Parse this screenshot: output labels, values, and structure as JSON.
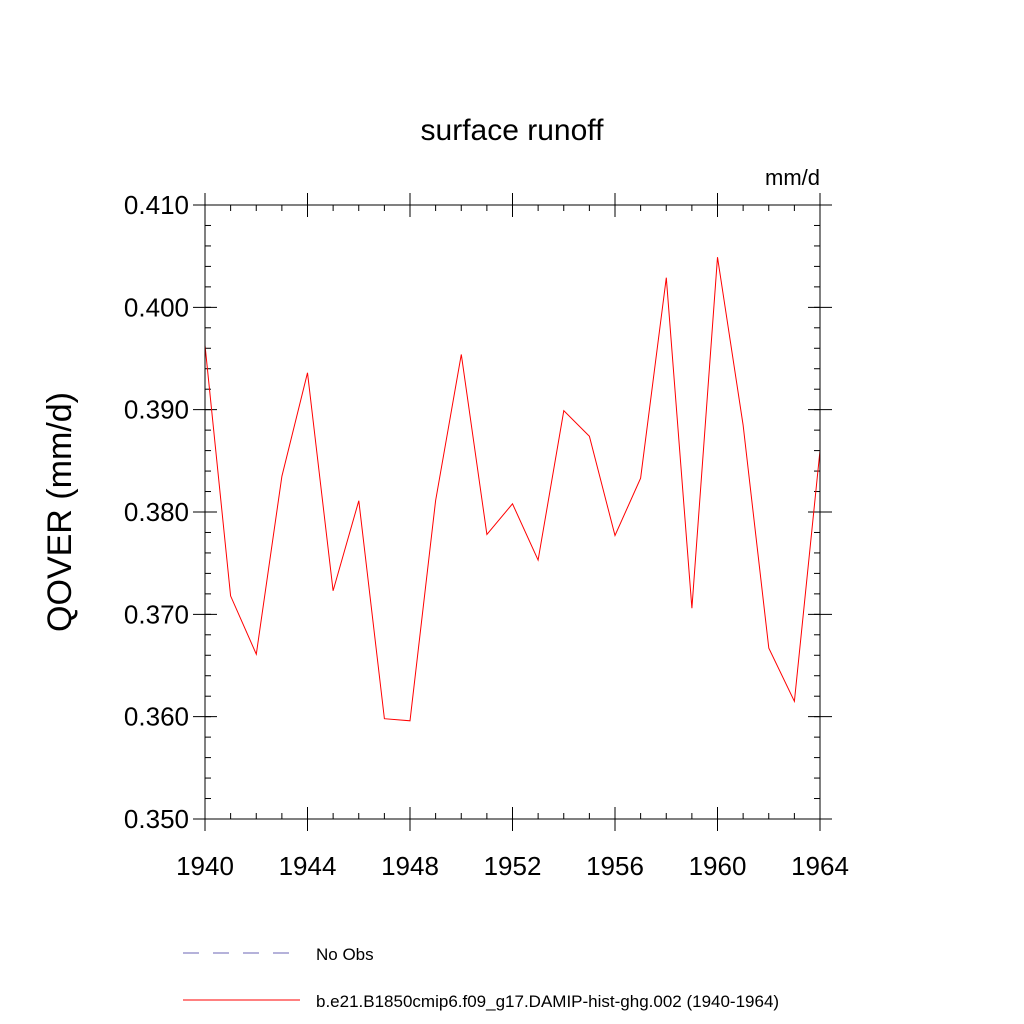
{
  "chart_data": {
    "type": "line",
    "title": "surface runoff",
    "units": "mm/d",
    "ylabel": "QOVER  (mm/d)",
    "xlabel": "",
    "xlim": [
      1940,
      1964
    ],
    "ylim": [
      0.35,
      0.41
    ],
    "x_ticks": [
      1940,
      1944,
      1948,
      1952,
      1956,
      1960,
      1964
    ],
    "y_ticks": [
      "0.350",
      "0.360",
      "0.370",
      "0.380",
      "0.390",
      "0.400",
      "0.410"
    ],
    "grid": false,
    "legend_position": "bottom",
    "series": [
      {
        "name": "No Obs",
        "color": "#6b66b5",
        "dash": true,
        "x": [],
        "values": []
      },
      {
        "name": "b.e21.B1850cmip6.f09_g17.DAMIP-hist-ghg.002 (1940-1964)",
        "color": "#ff0000",
        "dash": false,
        "x": [
          1940,
          1941,
          1942,
          1943,
          1944,
          1945,
          1946,
          1947,
          1948,
          1949,
          1950,
          1951,
          1952,
          1953,
          1954,
          1955,
          1956,
          1957,
          1958,
          1959,
          1960,
          1961,
          1962,
          1963,
          1964
        ],
        "values": [
          0.3963,
          0.3718,
          0.3661,
          0.3835,
          0.3936,
          0.3723,
          0.3811,
          0.3598,
          0.3596,
          0.3811,
          0.3954,
          0.3778,
          0.3808,
          0.3753,
          0.3899,
          0.3874,
          0.3777,
          0.3833,
          0.4029,
          0.3706,
          0.4049,
          0.3885,
          0.3667,
          0.3615,
          0.386
        ]
      }
    ]
  }
}
